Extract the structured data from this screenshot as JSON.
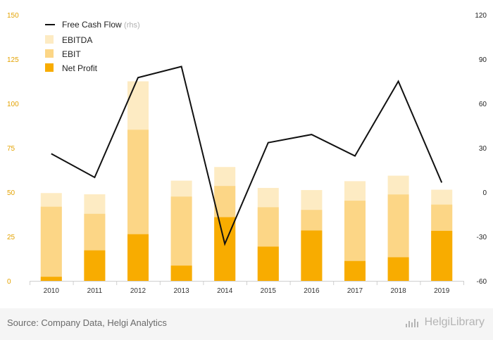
{
  "chart_data": {
    "type": "bar",
    "categories": [
      "2010",
      "2011",
      "2012",
      "2013",
      "2014",
      "2015",
      "2016",
      "2017",
      "2018",
      "2019"
    ],
    "series": [
      {
        "name": "EBITDA",
        "kind": "bar-left",
        "color": "#fdebc3",
        "values": [
          49.5,
          48.8,
          112.5,
          56.5,
          64.2,
          52.4,
          51.2,
          56.2,
          59.3,
          51.4
        ]
      },
      {
        "name": "EBIT",
        "kind": "bar-left",
        "color": "#fcd686",
        "values": [
          41.8,
          37.8,
          85.2,
          47.5,
          53.5,
          41.5,
          40.0,
          45.2,
          48.7,
          43.0
        ]
      },
      {
        "name": "Net Profit",
        "kind": "bar-left",
        "color": "#f8ac00",
        "values": [
          2.3,
          17.2,
          26.3,
          8.6,
          35.9,
          19.3,
          28.4,
          11.2,
          13.3,
          28.2
        ]
      },
      {
        "name": "Free Cash Flow",
        "name_suffix": "(rhs)",
        "kind": "line-right",
        "color": "#111111",
        "values": [
          26.0,
          10.0,
          77.5,
          85.0,
          -35.0,
          33.5,
          39.0,
          24.5,
          75.0,
          6.5
        ]
      }
    ],
    "y_left": {
      "min": 0,
      "max": 150,
      "ticks": [
        "0",
        "25",
        "50",
        "75",
        "100",
        "125",
        "150"
      ],
      "color": "#e3a200"
    },
    "y_right": {
      "min": -60,
      "max": 120,
      "ticks": [
        "-60",
        "-30",
        "0",
        "30",
        "60",
        "90",
        "120"
      ]
    },
    "legend_position": "top-left",
    "grid": false
  },
  "footer": {
    "source": "Source: Company Data, Helgi Analytics",
    "brand": "HelgiLibrary"
  }
}
